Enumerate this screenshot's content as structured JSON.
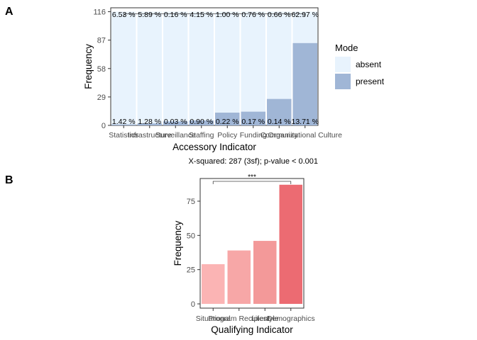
{
  "panels": {
    "a": {
      "tag": "A"
    },
    "b": {
      "tag": "B"
    }
  },
  "chart_data": [
    {
      "type": "bar",
      "stacked": true,
      "xlabel": "Accessory Indicator",
      "ylabel": "Frequency",
      "categories": [
        "Statistics",
        "Infrastructure",
        "Surveillance",
        "Staffing",
        "Policy",
        "Funding",
        "Community",
        "Organizational Culture"
      ],
      "category_labels_rendered_overlapping": true,
      "ylim": [
        0,
        120
      ],
      "yticks": [
        0,
        29,
        58,
        87,
        116
      ],
      "series": [
        {
          "name": "present",
          "color": "#a0b6d6",
          "values": [
            1,
            2,
            4,
            5,
            13,
            14,
            27,
            84
          ],
          "labels": [
            "1.42 %",
            "1.28 %",
            "0.03 %",
            "0.90 %",
            "0.22 %",
            "0.17 %",
            "0.14 %",
            "13.71 %"
          ]
        },
        {
          "name": "absent",
          "color": "#e8f3fd",
          "values": [
            115,
            114,
            112,
            111,
            103,
            102,
            89,
            32
          ],
          "labels": [
            "6.53 %",
            "5.89 %",
            "0.16 %",
            "4.15 %",
            "1.00 %",
            "0.76 %",
            "0.66 %",
            "62.97 %"
          ]
        }
      ],
      "legend": {
        "title": "Mode",
        "entries": [
          "absent",
          "present"
        ],
        "placement": "right"
      },
      "stat_text": "X-squared: 287 (3sf); p-value < 0.001",
      "significance_bracket": true,
      "grid": false
    },
    {
      "type": "bar",
      "xlabel": "Qualifying Indicator",
      "ylabel": "Frequency",
      "categories": [
        "Situational",
        "Program Recipient",
        "Lifestyle",
        "Demographics"
      ],
      "category_labels_rendered_overlapping": true,
      "values": [
        29,
        39,
        46,
        87
      ],
      "colors": [
        "#fbb4b4",
        "#f7a7a7",
        "#f39999",
        "#ec6b72"
      ],
      "ylim": [
        0,
        90
      ],
      "yticks": [
        0,
        25,
        50,
        75
      ],
      "significance_label": "***",
      "grid": false
    }
  ]
}
